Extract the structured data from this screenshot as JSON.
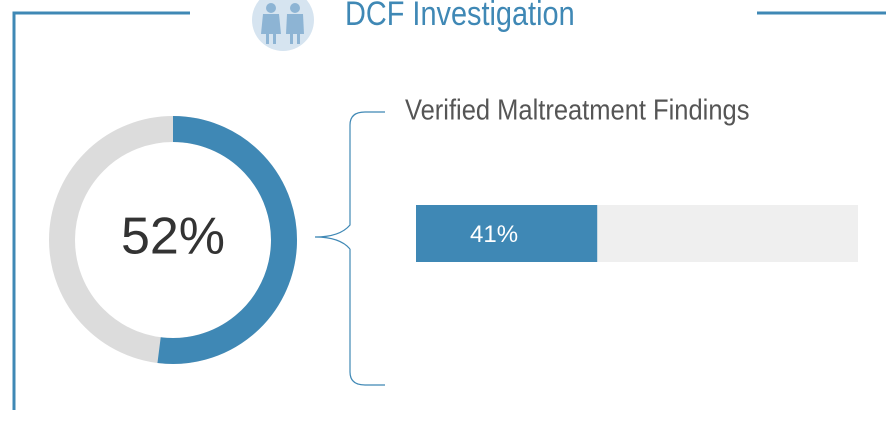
{
  "title": "DCF Investigation",
  "chart_data": [
    {
      "type": "donut",
      "values": [
        52
      ],
      "value_labels": [
        "52%"
      ],
      "ylim": [
        0,
        100
      ],
      "color": "#3f88b5",
      "track_color": "#dcdcdc"
    },
    {
      "type": "bar",
      "title": "Verified Maltreatment Findings",
      "values": [
        41
      ],
      "value_labels": [
        "41%"
      ],
      "xlim": [
        0,
        100
      ],
      "color": "#3f88b5",
      "track_color": "#efefef"
    }
  ]
}
